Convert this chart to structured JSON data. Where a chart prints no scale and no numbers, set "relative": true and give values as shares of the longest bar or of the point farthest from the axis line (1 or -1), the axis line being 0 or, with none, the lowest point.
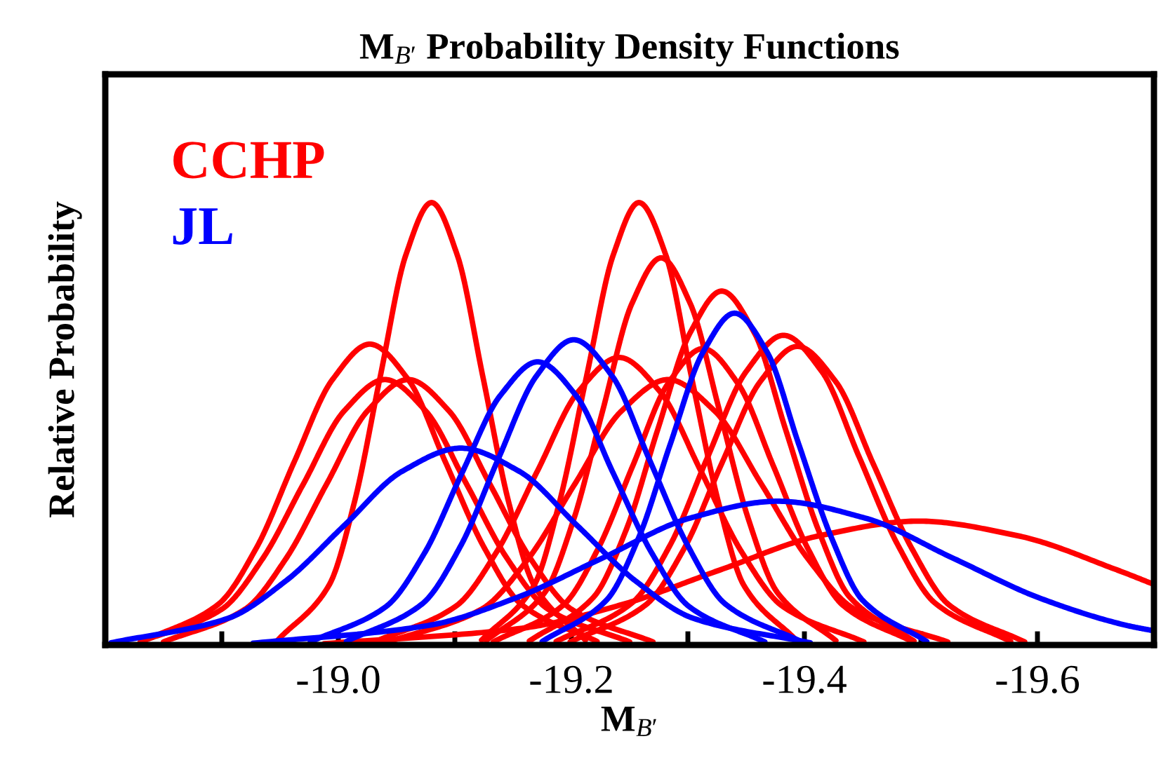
{
  "chart_data": {
    "type": "line",
    "title": "M$_{B′}$ Probability Density Functions",
    "xlabel": "M$_{B′}$",
    "ylabel": "Relative Probability",
    "relative": true,
    "xlim": [
      -18.8,
      -19.7
    ],
    "xticks": [
      {
        "value": -18.9,
        "label": null
      },
      {
        "value": -19.0,
        "label": "-19.0"
      },
      {
        "value": -19.1,
        "label": null
      },
      {
        "value": -19.2,
        "label": "-19.2"
      },
      {
        "value": -19.3,
        "label": null
      },
      {
        "value": -19.4,
        "label": "-19.4"
      },
      {
        "value": -19.5,
        "label": null
      },
      {
        "value": -19.6,
        "label": "-19.6"
      }
    ],
    "grid": false,
    "legend": "top left",
    "marker": "none",
    "line_style": "solid",
    "series": [
      {
        "name": "CCHP",
        "color": "#ff0000",
        "x": [
          -18.832,
          -18.897,
          -18.93,
          -18.962,
          -18.995,
          -19.027,
          -19.06,
          -19.092,
          -19.125,
          -19.157,
          -19.222
        ],
        "values": [
          0.008,
          0.092,
          0.221,
          0.413,
          0.6,
          0.68,
          0.6,
          0.413,
          0.221,
          0.092,
          0.008
        ]
      },
      {
        "color": "#ff0000",
        "x": [
          -18.83,
          -18.9,
          -18.935,
          -18.97,
          -19.005,
          -19.04,
          -19.075,
          -19.11,
          -19.145,
          -19.18,
          -19.25
        ],
        "values": [
          0.007,
          0.081,
          0.195,
          0.364,
          0.529,
          0.6,
          0.529,
          0.364,
          0.195,
          0.081,
          0.007
        ]
      },
      {
        "color": "#ff0000",
        "x": [
          -18.85,
          -18.92,
          -18.955,
          -18.99,
          -19.025,
          -19.06,
          -19.095,
          -19.13,
          -19.165,
          -19.2,
          -19.27
        ],
        "values": [
          0.007,
          0.081,
          0.195,
          0.364,
          0.529,
          0.6,
          0.529,
          0.364,
          0.195,
          0.081,
          0.007
        ]
      },
      {
        "color": "#ff0000",
        "x": [
          -18.948,
          -18.992,
          -19.014,
          -19.036,
          -19.058,
          -19.08,
          -19.102,
          -19.124,
          -19.146,
          -19.168,
          -19.212
        ],
        "values": [
          0.011,
          0.135,
          0.325,
          0.607,
          0.882,
          1,
          0.882,
          0.607,
          0.325,
          0.135,
          0.011
        ]
      },
      {
        "color": "#ff0000",
        "x": [
          -19.123,
          -19.168,
          -19.19,
          -19.213,
          -19.236,
          -19.258,
          -19.281,
          -19.303,
          -19.326,
          -19.348,
          -19.393
        ],
        "values": [
          0.011,
          0.135,
          0.325,
          0.607,
          0.882,
          1,
          0.882,
          0.607,
          0.325,
          0.135,
          0.011
        ]
      },
      {
        "color": "#ff0000",
        "x": [
          -19.127,
          -19.177,
          -19.202,
          -19.227,
          -19.252,
          -19.277,
          -19.302,
          -19.327,
          -19.352,
          -19.377,
          -19.427
        ],
        "values": [
          0.01,
          0.118,
          0.284,
          0.531,
          0.772,
          0.875,
          0.772,
          0.531,
          0.284,
          0.118,
          0.01
        ]
      },
      {
        "color": "#ff0000",
        "x": [
          -19.164,
          -19.219,
          -19.247,
          -19.274,
          -19.302,
          -19.329,
          -19.357,
          -19.384,
          -19.412,
          -19.439,
          -19.494
        ],
        "values": [
          0.009,
          0.108,
          0.26,
          0.486,
          0.706,
          0.8,
          0.706,
          0.486,
          0.26,
          0.108,
          0.009
        ]
      },
      {
        "color": "#ff0000",
        "x": [
          -19.187,
          -19.252,
          -19.285,
          -19.317,
          -19.35,
          -19.382,
          -19.415,
          -19.447,
          -19.48,
          -19.512,
          -19.577
        ],
        "values": [
          0.008,
          0.095,
          0.227,
          0.425,
          0.618,
          0.7,
          0.618,
          0.425,
          0.227,
          0.095,
          0.008
        ]
      },
      {
        "color": "#ff0000",
        "x": [
          -19.199,
          -19.264,
          -19.297,
          -19.329,
          -19.362,
          -19.394,
          -19.427,
          -19.459,
          -19.492,
          -19.524,
          -19.589
        ],
        "values": [
          0.007,
          0.091,
          0.219,
          0.41,
          0.595,
          0.675,
          0.595,
          0.41,
          0.219,
          0.091,
          0.007
        ]
      },
      {
        "color": "#ff0000",
        "x": [
          -19.031,
          -19.101,
          -19.136,
          -19.171,
          -19.206,
          -19.241,
          -19.276,
          -19.311,
          -19.346,
          -19.381,
          -19.451
        ],
        "values": [
          0.007,
          0.088,
          0.211,
          0.394,
          0.573,
          0.65,
          0.573,
          0.394,
          0.211,
          0.088,
          0.007
        ]
      },
      {
        "color": "#ff0000",
        "x": [
          -19.043,
          -19.123,
          -19.163,
          -19.203,
          -19.243,
          -19.283,
          -19.323,
          -19.363,
          -19.403,
          -19.443,
          -19.523
        ],
        "values": [
          0.007,
          0.081,
          0.195,
          0.364,
          0.529,
          0.6,
          0.529,
          0.364,
          0.195,
          0.081,
          0.007
        ]
      },
      {
        "color": "#ff0000",
        "x": [
          -19.133,
          -19.193,
          -19.223,
          -19.253,
          -19.283,
          -19.313,
          -19.343,
          -19.373,
          -19.403,
          -19.433,
          -19.493
        ],
        "values": [
          0.007,
          0.09,
          0.218,
          0.407,
          0.591,
          0.67,
          0.591,
          0.407,
          0.218,
          0.09,
          0.007
        ]
      },
      {
        "color": "#ff0000",
        "x": [
          -18.988,
          -19.158,
          -19.243,
          -19.328,
          -19.413,
          -19.498,
          -19.583,
          -19.668,
          -19.7
        ],
        "values": [
          0.003,
          0.038,
          0.091,
          0.17,
          0.247,
          0.28,
          0.247,
          0.17,
          0.137
        ]
      },
      {
        "name": "JL",
        "color": "#0000ff",
        "x": [
          -18.805,
          -18.905,
          -18.955,
          -19.005,
          -19.055,
          -19.105,
          -19.155,
          -19.205,
          -19.255,
          -19.305,
          -19.405
        ],
        "values": [
          0.005,
          0.06,
          0.145,
          0.27,
          0.393,
          0.445,
          0.393,
          0.27,
          0.145,
          0.06,
          0.005
        ]
      },
      {
        "color": "#0000ff",
        "x": [
          -18.976,
          -19.041,
          -19.074,
          -19.106,
          -19.139,
          -19.171,
          -19.204,
          -19.236,
          -19.269,
          -19.301,
          -19.366
        ],
        "values": [
          0.007,
          0.087,
          0.208,
          0.388,
          0.564,
          0.64,
          0.564,
          0.388,
          0.208,
          0.087,
          0.007
        ]
      },
      {
        "color": "#0000ff",
        "x": [
          -19.007,
          -19.072,
          -19.105,
          -19.137,
          -19.17,
          -19.202,
          -19.235,
          -19.267,
          -19.3,
          -19.332,
          -19.397
        ],
        "values": [
          0.008,
          0.093,
          0.224,
          0.419,
          0.608,
          0.69,
          0.608,
          0.419,
          0.224,
          0.093,
          0.008
        ]
      },
      {
        "color": "#0000ff",
        "x": [
          -19.175,
          -19.23,
          -19.258,
          -19.285,
          -19.313,
          -19.34,
          -19.368,
          -19.395,
          -19.423,
          -19.45,
          -19.505
        ],
        "values": [
          0.008,
          0.101,
          0.244,
          0.455,
          0.662,
          0.75,
          0.662,
          0.455,
          0.244,
          0.101,
          0.008
        ]
      },
      {
        "color": "#0000ff",
        "x": [
          -18.927,
          -19.077,
          -19.152,
          -19.227,
          -19.302,
          -19.377,
          -19.452,
          -19.527,
          -19.602,
          -19.677,
          -19.7
        ],
        "values": [
          0.004,
          0.044,
          0.106,
          0.197,
          0.287,
          0.325,
          0.287,
          0.197,
          0.106,
          0.044,
          0.032
        ]
      }
    ]
  }
}
